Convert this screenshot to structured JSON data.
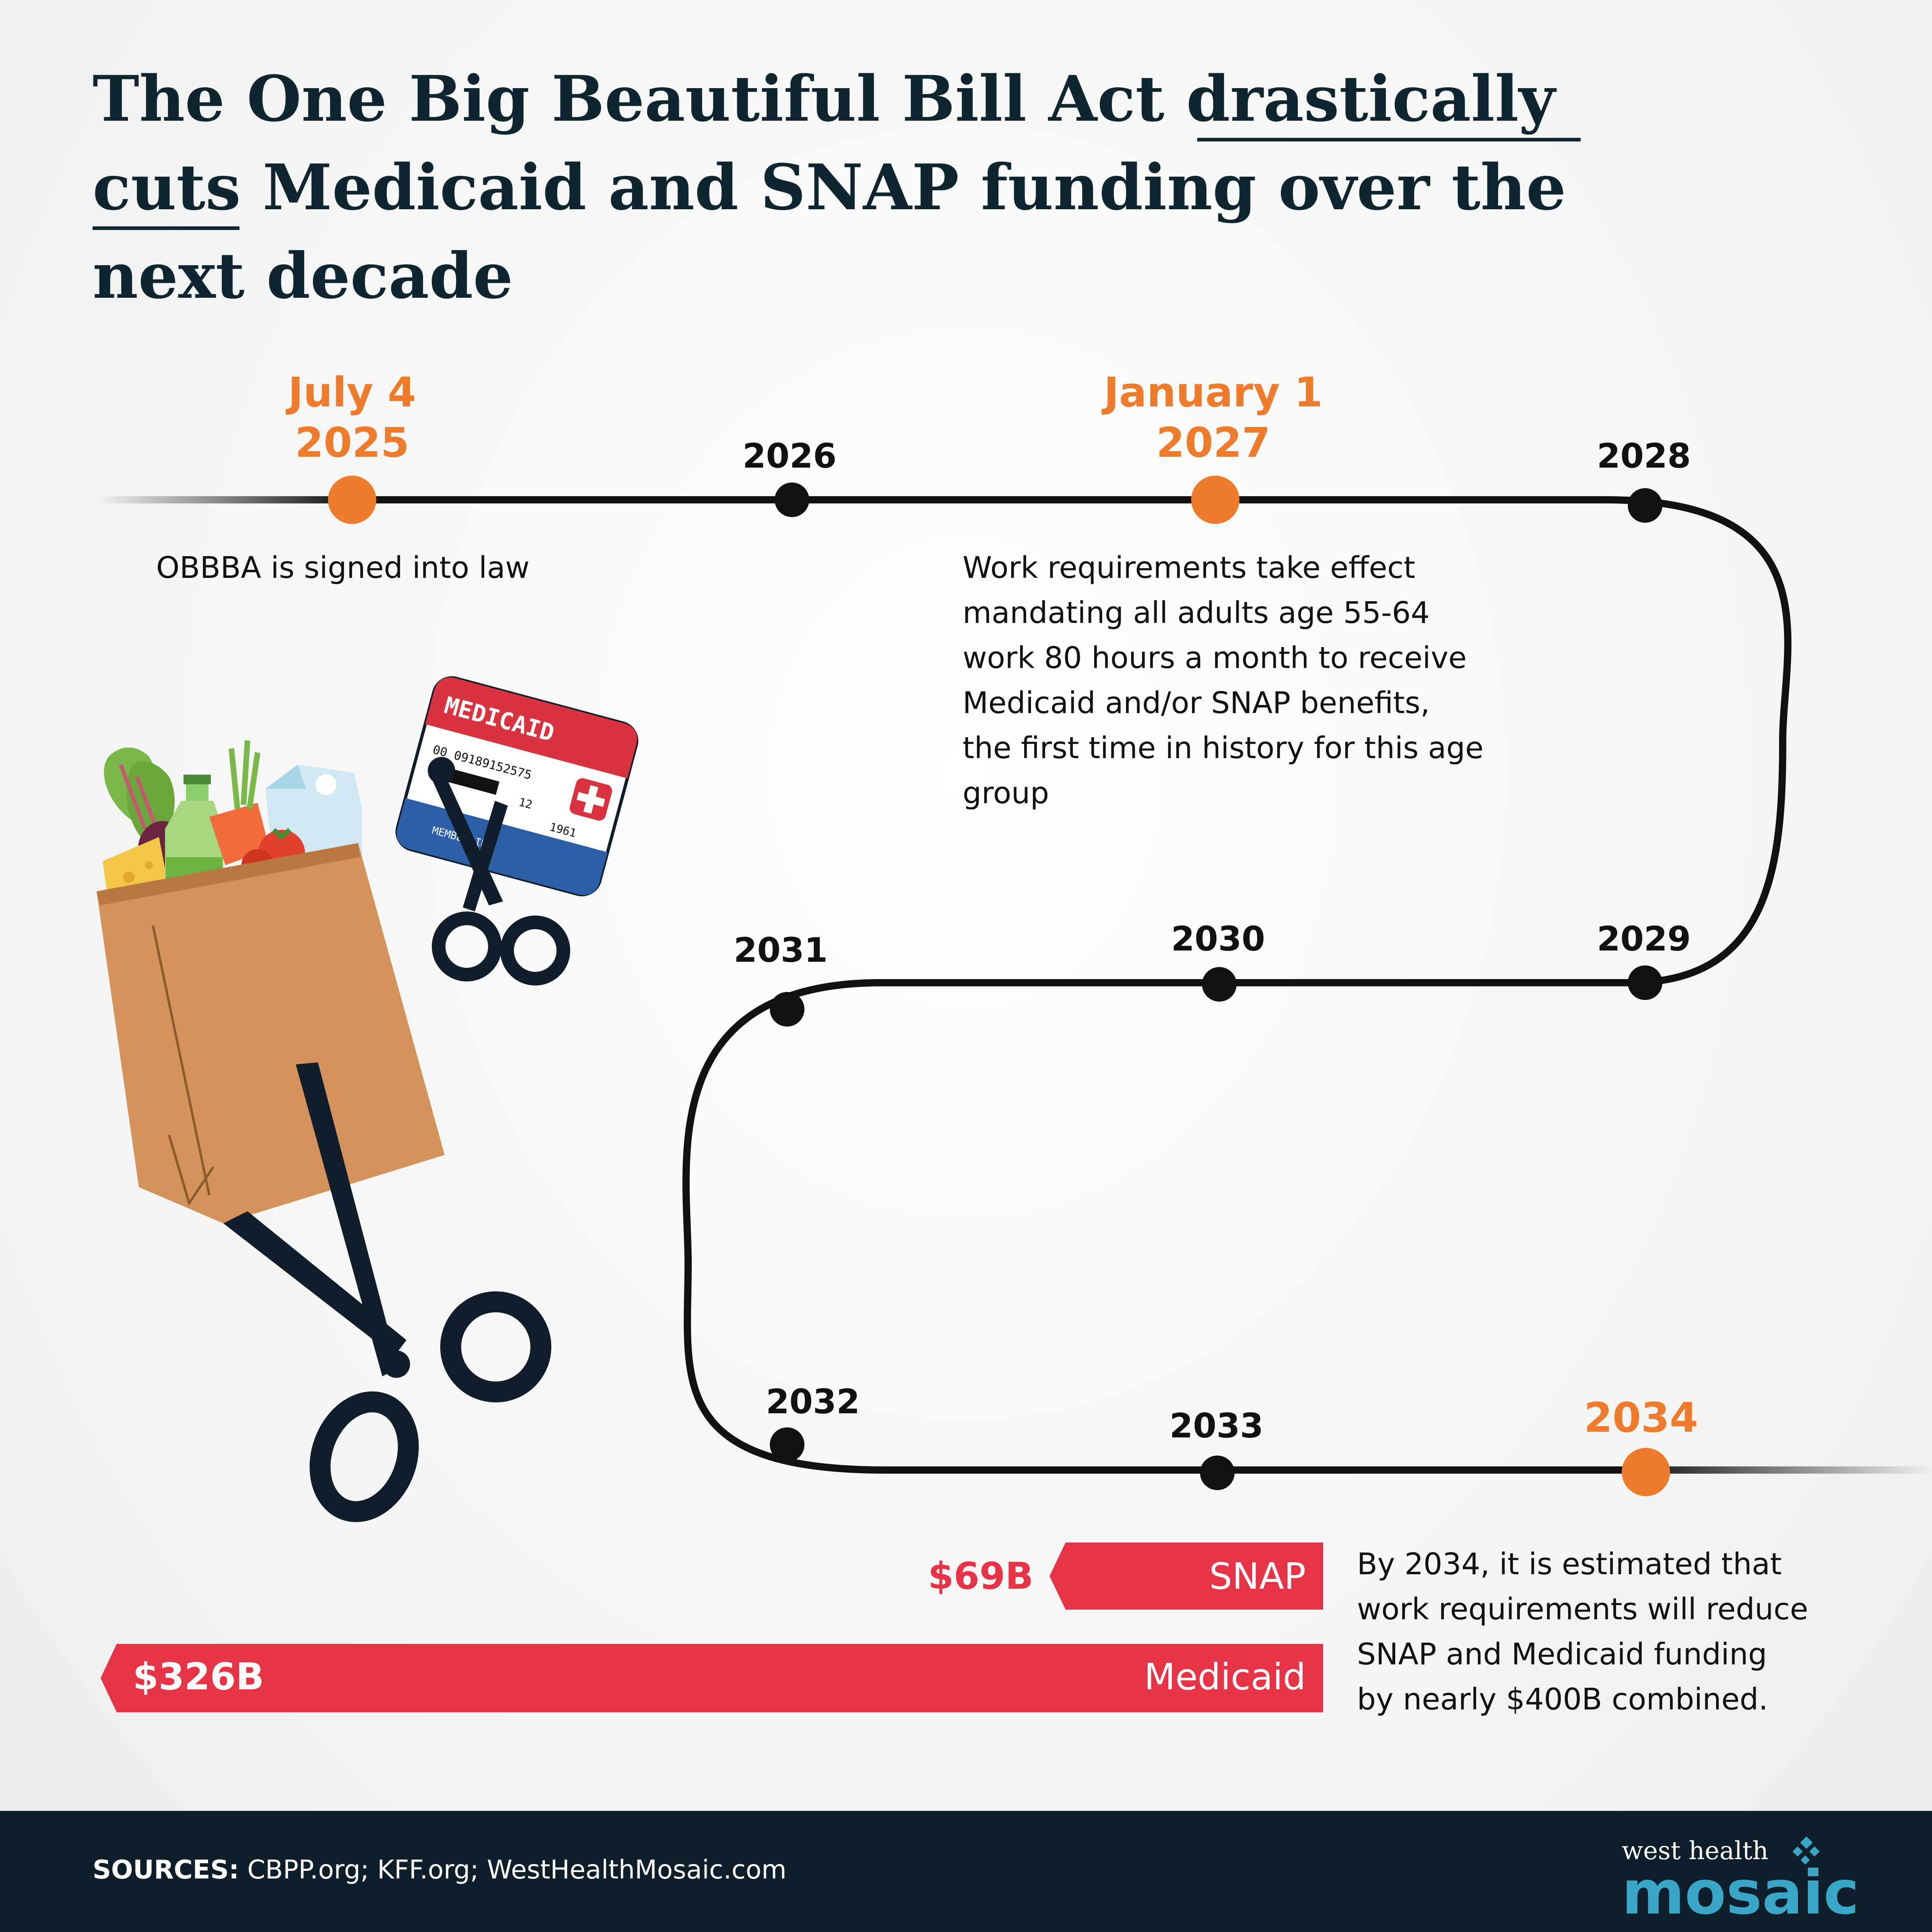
{
  "title": {
    "line1_a": "The One Big Beautiful Bill Act ",
    "line1_b": "drastically",
    "line2_a": "cuts",
    "line2_b": " Medicaid and SNAP funding over the",
    "line3": "next decade"
  },
  "timeline": {
    "milestones": [
      {
        "date": "July 4",
        "year": "2025",
        "text": "OBBBA is signed into law"
      },
      {
        "date": "January 1",
        "year": "2027",
        "text_lines": [
          "Work requirements take effect",
          "mandating all adults age 55-64",
          "work 80 hours a month to receive",
          "Medicaid and/or SNAP benefits,",
          "the first time in history for this age",
          "group"
        ]
      },
      {
        "year": "2034"
      }
    ],
    "years": [
      "2026",
      "2028",
      "2029",
      "2030",
      "2031",
      "2032",
      "2033"
    ]
  },
  "bars": {
    "snap": {
      "label": "SNAP",
      "value": "$69B",
      "billions": 69
    },
    "medicaid": {
      "label": "Medicaid",
      "value": "$326B",
      "billions": 326
    }
  },
  "summary_lines": [
    "By 2034, it is estimated that",
    "work requirements will reduce",
    "SNAP and Medicaid funding",
    "by nearly $400B combined."
  ],
  "card": {
    "header": "MEDICAID",
    "number": "00 09189152575",
    "exp_month": "12",
    "exp_year": "1961",
    "member_label": "MEMBER ID#"
  },
  "footer": {
    "sources_label": "SOURCES:",
    "sources": " CBPP.org; KFF.org; WestHealthMosaic.com",
    "logo_top": "west health",
    "logo_bottom": "mosaic"
  },
  "colors": {
    "orange": "#ef7b2c",
    "red": "#e63346",
    "navy": "#0f2530",
    "footer_bg": "#0e1f2b",
    "logo_blue": "#3aa6c8"
  }
}
